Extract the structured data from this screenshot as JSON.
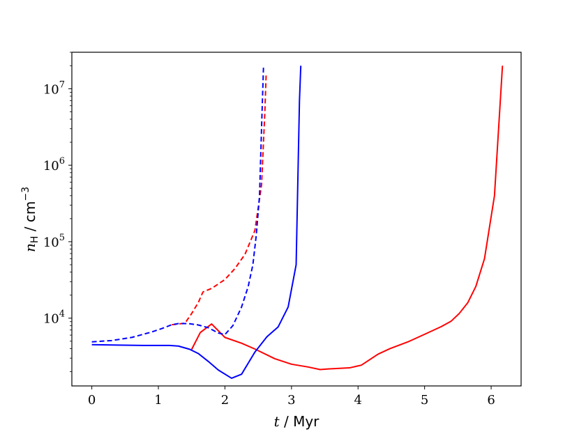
{
  "chart_data": {
    "type": "line",
    "title": "",
    "xlabel": {
      "var": "t",
      "unit": " / Myr"
    },
    "ylabel": {
      "var": "n",
      "sub": "H",
      "unit": " / cm",
      "sup": "−3"
    },
    "xlim": [
      -0.3,
      6.45
    ],
    "ylim": [
      1300,
      30000000
    ],
    "yscale": "log",
    "xticks": [
      0,
      1,
      2,
      3,
      4,
      5,
      6
    ],
    "yticks": [
      {
        "value": 10000,
        "base": "10",
        "exp": "4"
      },
      {
        "value": 100000,
        "base": "10",
        "exp": "5"
      },
      {
        "value": 1000000,
        "base": "10",
        "exp": "6"
      },
      {
        "value": 10000000,
        "base": "10",
        "exp": "7"
      }
    ],
    "grid": false,
    "series": [
      {
        "color": "#ff0000",
        "dash": "solid",
        "x": [
          1.5,
          1.63,
          1.8,
          2.0,
          2.25,
          2.45,
          2.75,
          3.0,
          3.25,
          3.43,
          3.55,
          3.87,
          4.05,
          4.3,
          4.48,
          4.75,
          5.0,
          5.25,
          5.4,
          5.52,
          5.65,
          5.77,
          5.9,
          6.05,
          6.17
        ],
        "y": [
          3900,
          6500,
          8400,
          5600,
          4700,
          3950,
          2950,
          2500,
          2300,
          2130,
          2170,
          2240,
          2430,
          3380,
          4000,
          4900,
          6150,
          7750,
          9150,
          11500,
          16000,
          26000,
          60000,
          400000,
          20000000
        ]
      },
      {
        "color": "#0000ff",
        "dash": "solid",
        "x": [
          0.0,
          0.4,
          0.77,
          1.17,
          1.3,
          1.47,
          1.6,
          1.75,
          1.9,
          2.1,
          2.25,
          2.45,
          2.63,
          2.8,
          2.95,
          3.07,
          3.12,
          3.14
        ],
        "y": [
          4500,
          4450,
          4400,
          4400,
          4320,
          3920,
          3450,
          2720,
          2100,
          1640,
          1850,
          3600,
          5700,
          7700,
          14000,
          50000,
          7000000,
          20000000
        ]
      },
      {
        "color": "#ff0000",
        "dash": "dashed",
        "x": [
          1.2,
          1.4,
          1.5,
          1.6,
          1.67,
          1.8,
          2.0,
          2.15,
          2.3,
          2.45,
          2.55,
          2.6,
          2.62
        ],
        "y": [
          8200,
          8600,
          11500,
          16000,
          22000,
          24500,
          32000,
          44500,
          68000,
          140000,
          550000,
          5000000,
          16000000
        ]
      },
      {
        "color": "#0000ff",
        "dash": "dashed",
        "x": [
          0.0,
          0.3,
          0.6,
          0.9,
          1.05,
          1.2,
          1.3,
          1.45,
          1.6,
          1.75,
          1.9,
          2.0,
          2.12,
          2.25,
          2.35,
          2.42,
          2.47,
          2.52,
          2.55,
          2.58
        ],
        "y": [
          4900,
          5100,
          5600,
          6600,
          7300,
          8200,
          8500,
          8500,
          8150,
          7500,
          6400,
          6100,
          8000,
          14000,
          26000,
          50000,
          120000,
          400000,
          3000000,
          20000000
        ]
      }
    ]
  }
}
